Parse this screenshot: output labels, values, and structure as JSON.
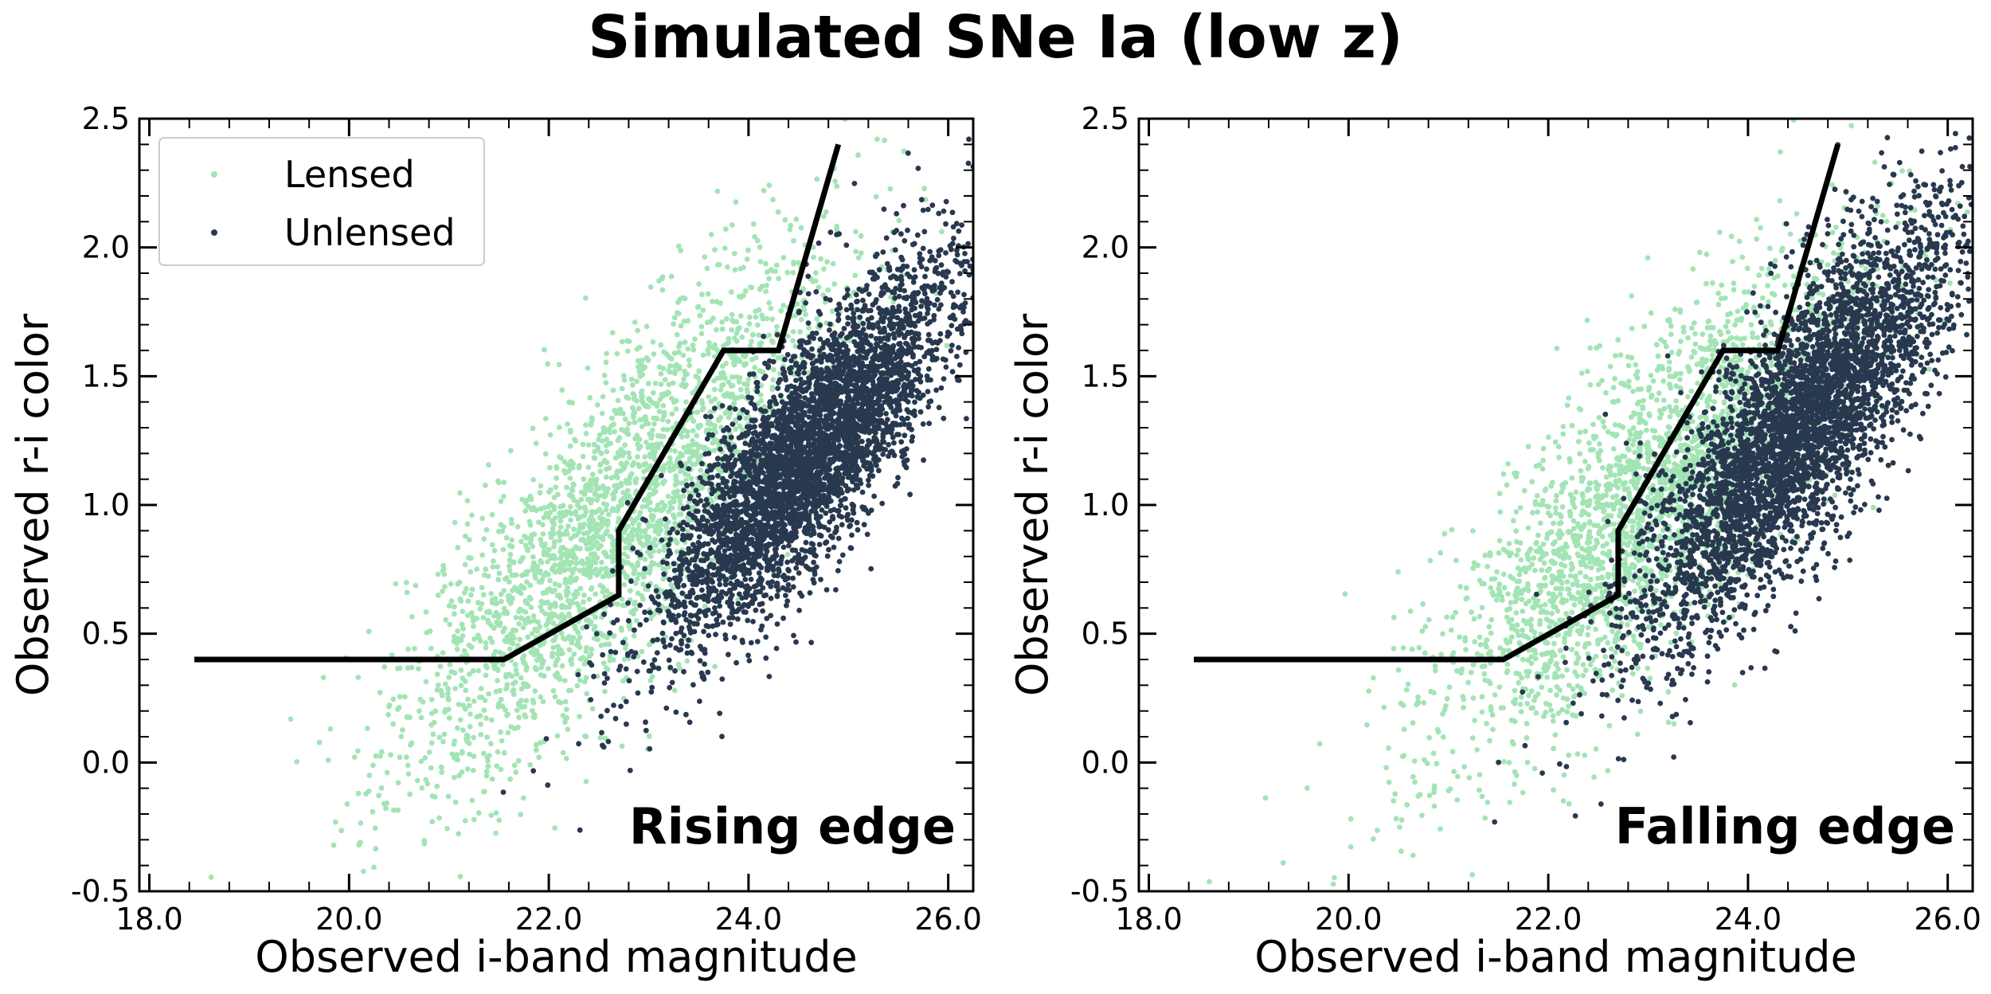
{
  "suptitle": "Simulated SNe Ia (low z)",
  "colors": {
    "lensed": "#a3e4b5",
    "unlensed": "#28394f",
    "boundary": "#000000",
    "frame": "#000000"
  },
  "chart_data": [
    {
      "type": "scatter",
      "panel_label": "Rising edge",
      "xlabel": "Observed i-band magnitude",
      "ylabel": "Observed r-i color",
      "xlim": [
        17.9,
        26.25
      ],
      "ylim": [
        -0.5,
        2.5
      ],
      "x_ticks": [
        18.0,
        20.0,
        22.0,
        24.0,
        26.0
      ],
      "x_tick_labels": [
        "18.0",
        "20.0",
        "22.0",
        "24.0",
        "26.0"
      ],
      "y_ticks": [
        -0.5,
        0.0,
        0.5,
        1.0,
        1.5,
        2.0,
        2.5
      ],
      "y_tick_labels": [
        "-0.5",
        "0.0",
        "0.5",
        "1.0",
        "1.5",
        "2.0",
        "2.5"
      ],
      "grid": false,
      "legend": {
        "placement": "top-left",
        "entries": [
          "Lensed",
          "Unlensed"
        ]
      },
      "series": [
        {
          "name": "Lensed",
          "color": "#a3e4b5",
          "n_points": 2600,
          "trend": {
            "x_center": 22.7,
            "x_sd": 1.1,
            "slope": 0.38,
            "intercept_at_center": 0.95,
            "scatter": 0.3
          }
        },
        {
          "name": "Unlensed",
          "color": "#28394f",
          "n_points": 4200,
          "trend": {
            "x_center": 24.6,
            "x_sd": 0.75,
            "slope": 0.4,
            "intercept_at_center": 1.2,
            "scatter": 0.22
          }
        }
      ],
      "boundary_line": {
        "x": [
          18.45,
          21.55,
          22.7,
          22.7,
          23.75,
          24.3,
          24.9
        ],
        "y": [
          0.4,
          0.4,
          0.65,
          0.9,
          1.6,
          1.6,
          2.4
        ]
      }
    },
    {
      "type": "scatter",
      "panel_label": "Falling edge",
      "xlabel": "Observed i-band magnitude",
      "ylabel": "Observed r-i color",
      "xlim": [
        17.9,
        26.25
      ],
      "ylim": [
        -0.5,
        2.5
      ],
      "x_ticks": [
        18.0,
        20.0,
        22.0,
        24.0,
        26.0
      ],
      "x_tick_labels": [
        "18.0",
        "20.0",
        "22.0",
        "24.0",
        "26.0"
      ],
      "y_ticks": [
        -0.5,
        0.0,
        0.5,
        1.0,
        1.5,
        2.0,
        2.5
      ],
      "y_tick_labels": [
        "-0.5",
        "0.0",
        "0.5",
        "1.0",
        "1.5",
        "2.0",
        "2.5"
      ],
      "grid": false,
      "series": [
        {
          "name": "Lensed",
          "color": "#a3e4b5",
          "n_points": 2600,
          "trend": {
            "x_center": 23.0,
            "x_sd": 1.1,
            "slope": 0.36,
            "intercept_at_center": 1.0,
            "scatter": 0.3
          }
        },
        {
          "name": "Unlensed",
          "color": "#28394f",
          "n_points": 4200,
          "trend": {
            "x_center": 24.5,
            "x_sd": 0.8,
            "slope": 0.42,
            "intercept_at_center": 1.3,
            "scatter": 0.24
          }
        }
      ],
      "boundary_line": {
        "x": [
          18.45,
          21.55,
          22.7,
          22.7,
          23.75,
          24.3,
          24.9
        ],
        "y": [
          0.4,
          0.4,
          0.65,
          0.9,
          1.6,
          1.6,
          2.4
        ]
      }
    }
  ]
}
